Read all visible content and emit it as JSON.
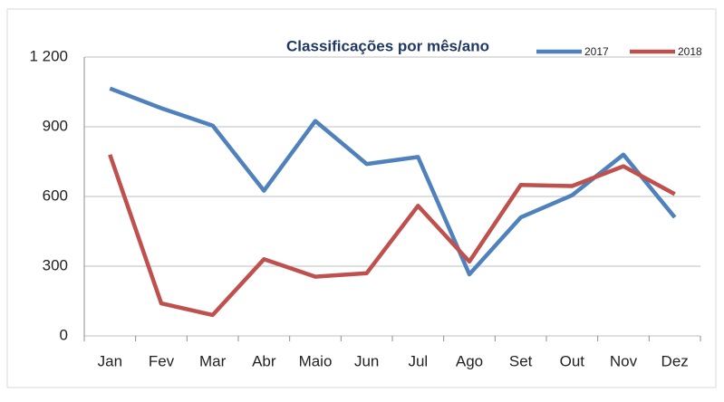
{
  "chart_data": {
    "type": "line",
    "title": "Classificações por mês/ano",
    "categories": [
      "Jan",
      "Fev",
      "Mar",
      "Abr",
      "Maio",
      "Jun",
      "Jul",
      "Ago",
      "Set",
      "Out",
      "Nov",
      "Dez"
    ],
    "series": [
      {
        "name": "2017",
        "color": "#4f81bd",
        "values": [
          1065,
          980,
          905,
          625,
          925,
          740,
          770,
          265,
          510,
          605,
          780,
          510
        ]
      },
      {
        "name": "2018",
        "color": "#c0504d",
        "values": [
          780,
          140,
          90,
          330,
          255,
          270,
          560,
          320,
          650,
          645,
          730,
          610
        ]
      }
    ],
    "ylim": [
      0,
      1200
    ],
    "yticks": [
      0,
      300,
      600,
      900,
      {
        "value": 1200,
        "label": "1 200"
      }
    ],
    "grid": true,
    "legend": "top-right"
  }
}
